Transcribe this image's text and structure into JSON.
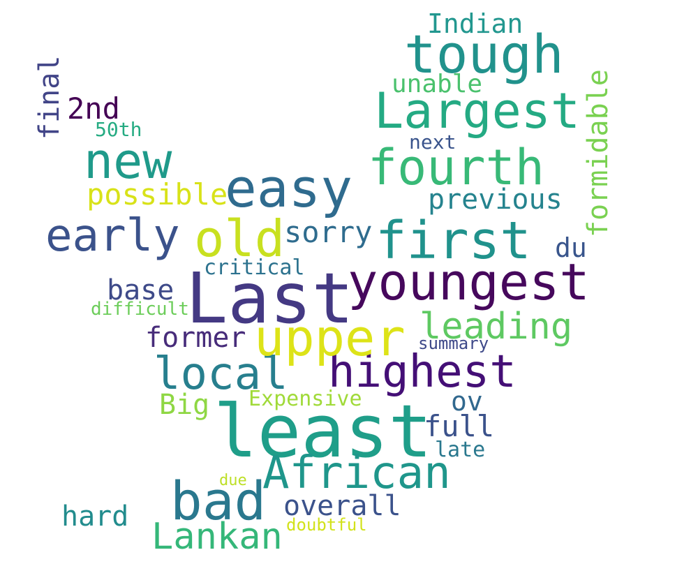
{
  "words": [
    {
      "text": "Indian",
      "color": "#22978f"
    },
    {
      "text": "tough",
      "color": "#21928c"
    },
    {
      "text": "Largest",
      "color": "#24aa83"
    },
    {
      "text": "unable",
      "color": "#4ac16d"
    },
    {
      "text": "fourth",
      "color": "#38b977"
    },
    {
      "text": "next",
      "color": "#3a548c"
    },
    {
      "text": "formidable",
      "color": "#7ad151"
    },
    {
      "text": "previous",
      "color": "#25838e"
    },
    {
      "text": "first",
      "color": "#20928c"
    },
    {
      "text": "du",
      "color": "#39558c"
    },
    {
      "text": "youngest",
      "color": "#46085c"
    },
    {
      "text": "leading",
      "color": "#5ec962"
    },
    {
      "text": "summary",
      "color": "#3e4989"
    },
    {
      "text": "highest",
      "color": "#440f76"
    },
    {
      "text": "ov",
      "color": "#31688e"
    },
    {
      "text": "full",
      "color": "#3b528b"
    },
    {
      "text": "late",
      "color": "#2a788e"
    },
    {
      "text": "least",
      "color": "#1f9e89"
    },
    {
      "text": "African",
      "color": "#1f968b"
    },
    {
      "text": "bad",
      "color": "#2a788e"
    },
    {
      "text": "overall",
      "color": "#3b528b"
    },
    {
      "text": "doubtful",
      "color": "#d2e21b"
    },
    {
      "text": "Lankan",
      "color": "#35b779"
    },
    {
      "text": "hard",
      "color": "#228c8d"
    },
    {
      "text": "due",
      "color": "#bddf26"
    },
    {
      "text": "Expensive",
      "color": "#a0da39"
    },
    {
      "text": "Big",
      "color": "#8fd744"
    },
    {
      "text": "local",
      "color": "#277f8e"
    },
    {
      "text": "upper",
      "color": "#dde318"
    },
    {
      "text": "former",
      "color": "#472c7a"
    },
    {
      "text": "Last",
      "color": "#443983"
    },
    {
      "text": "base",
      "color": "#3e4a89"
    },
    {
      "text": "difficult",
      "color": "#6ccd5a"
    },
    {
      "text": "critical",
      "color": "#2c728e"
    },
    {
      "text": "old",
      "color": "#c8e020"
    },
    {
      "text": "sorry",
      "color": "#2f6c8e"
    },
    {
      "text": "easy",
      "color": "#2f6b8e"
    },
    {
      "text": "early",
      "color": "#3b528b"
    },
    {
      "text": "possible",
      "color": "#d8e219"
    },
    {
      "text": "new",
      "color": "#1f9a8a"
    },
    {
      "text": "2nd",
      "color": "#440154"
    },
    {
      "text": "50th",
      "color": "#25ab82"
    },
    {
      "text": "final",
      "color": "#414487"
    }
  ]
}
